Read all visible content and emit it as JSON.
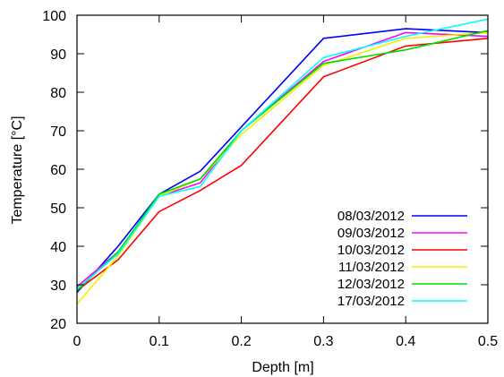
{
  "chart_data": {
    "type": "line",
    "title": "",
    "xlabel": "Depth [m]",
    "ylabel": "Temperature [°C]",
    "xlim": [
      0,
      0.5
    ],
    "ylim": [
      20,
      100
    ],
    "xticks": [
      "0",
      "0.1",
      "0.2",
      "0.3",
      "0.4",
      "0.5"
    ],
    "yticks": [
      "20",
      "30",
      "40",
      "50",
      "60",
      "70",
      "80",
      "90",
      "100"
    ],
    "grid": false,
    "legend_position": "bottom-right",
    "x": [
      0,
      0.05,
      0.1,
      0.15,
      0.2,
      0.3,
      0.4,
      0.5
    ],
    "series": [
      {
        "name": "08/03/2012",
        "color": "#0000ff",
        "values": [
          28.0,
          40.0,
          53.5,
          59.5,
          71.0,
          94.0,
          96.5,
          95.5
        ]
      },
      {
        "name": "09/03/2012",
        "color": "#ff00ff",
        "values": [
          29.5,
          38.5,
          53.0,
          56.5,
          70.0,
          88.0,
          95.5,
          94.5
        ]
      },
      {
        "name": "10/03/2012",
        "color": "#ff0000",
        "values": [
          28.5,
          36.5,
          49.0,
          54.5,
          61.0,
          84.0,
          92.0,
          94.0
        ]
      },
      {
        "name": "11/03/2012",
        "color": "#f0f000",
        "values": [
          25.0,
          37.5,
          53.0,
          57.5,
          69.0,
          87.0,
          94.0,
          95.5
        ]
      },
      {
        "name": "12/03/2012",
        "color": "#00dd00",
        "values": [
          28.5,
          38.5,
          53.5,
          57.5,
          70.0,
          87.5,
          91.0,
          96.0
        ]
      },
      {
        "name": "17/03/2012",
        "color": "#00ffff",
        "values": [
          29.0,
          38.0,
          53.0,
          55.5,
          70.0,
          89.0,
          94.5,
          99.0
        ]
      }
    ]
  }
}
